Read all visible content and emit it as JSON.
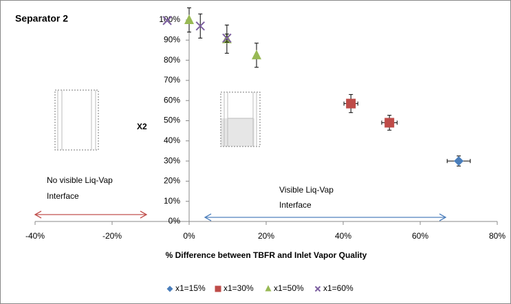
{
  "chart_data": {
    "type": "scatter",
    "title": "Separator 2",
    "x_label": "% Difference between TBFR and Inlet Vapor Quality",
    "y_label": "X2",
    "xlim": [
      -40,
      80
    ],
    "xticks": [
      {
        "value": -40,
        "label": "-40%"
      },
      {
        "value": -20,
        "label": "-20%"
      },
      {
        "value": 0,
        "label": "0%"
      },
      {
        "value": 20,
        "label": "20%"
      },
      {
        "value": 40,
        "label": "40%"
      },
      {
        "value": 60,
        "label": "60%"
      },
      {
        "value": 80,
        "label": "80%"
      }
    ],
    "ylim": [
      0,
      100
    ],
    "yticks": [
      {
        "value": 0,
        "label": "0%"
      },
      {
        "value": 10,
        "label": "10%"
      },
      {
        "value": 20,
        "label": "20%"
      },
      {
        "value": 30,
        "label": "30%"
      },
      {
        "value": 40,
        "label": "40%"
      },
      {
        "value": 50,
        "label": "50%"
      },
      {
        "value": 60,
        "label": "60%"
      },
      {
        "value": 70,
        "label": "70%"
      },
      {
        "value": 80,
        "label": "80%"
      },
      {
        "value": 90,
        "label": "90%"
      },
      {
        "value": 100,
        "label": "100%"
      }
    ],
    "legend": "bottom",
    "series": [
      {
        "name": "x1=15%",
        "color": "#4a7ebb",
        "marker": "diamond",
        "x": [
          70
        ],
        "values": [
          30
        ],
        "x_err": [
          3
        ],
        "y_err": [
          2.5
        ]
      },
      {
        "name": "x1=30%",
        "color": "#be4b48",
        "marker": "square",
        "x": [
          42,
          52
        ],
        "values": [
          58.5,
          49
        ],
        "x_err": [
          1.8,
          2
        ],
        "y_err": [
          4.5,
          3.7
        ]
      },
      {
        "name": "x1=50%",
        "color": "#98b954",
        "marker": "triangle",
        "x": [
          0,
          9.8,
          17.5
        ],
        "values": [
          100,
          90.5,
          82.5
        ],
        "x_err": [
          null,
          null,
          null
        ],
        "y_err": [
          6,
          7,
          6
        ]
      },
      {
        "name": "x1=60%",
        "color": "#7d60a0",
        "marker": "x",
        "x": [
          -5.7,
          2.9,
          9.8
        ],
        "values": [
          99.7,
          97,
          91
        ],
        "x_err": [
          null,
          null,
          null
        ],
        "y_err": [
          null,
          6,
          2
        ]
      }
    ],
    "annotations": [
      {
        "lines": [
          "No visible Liq-Vap",
          "Interface"
        ]
      },
      {
        "lines": [
          "Visible Liq-Vap",
          "Interface"
        ]
      }
    ]
  }
}
